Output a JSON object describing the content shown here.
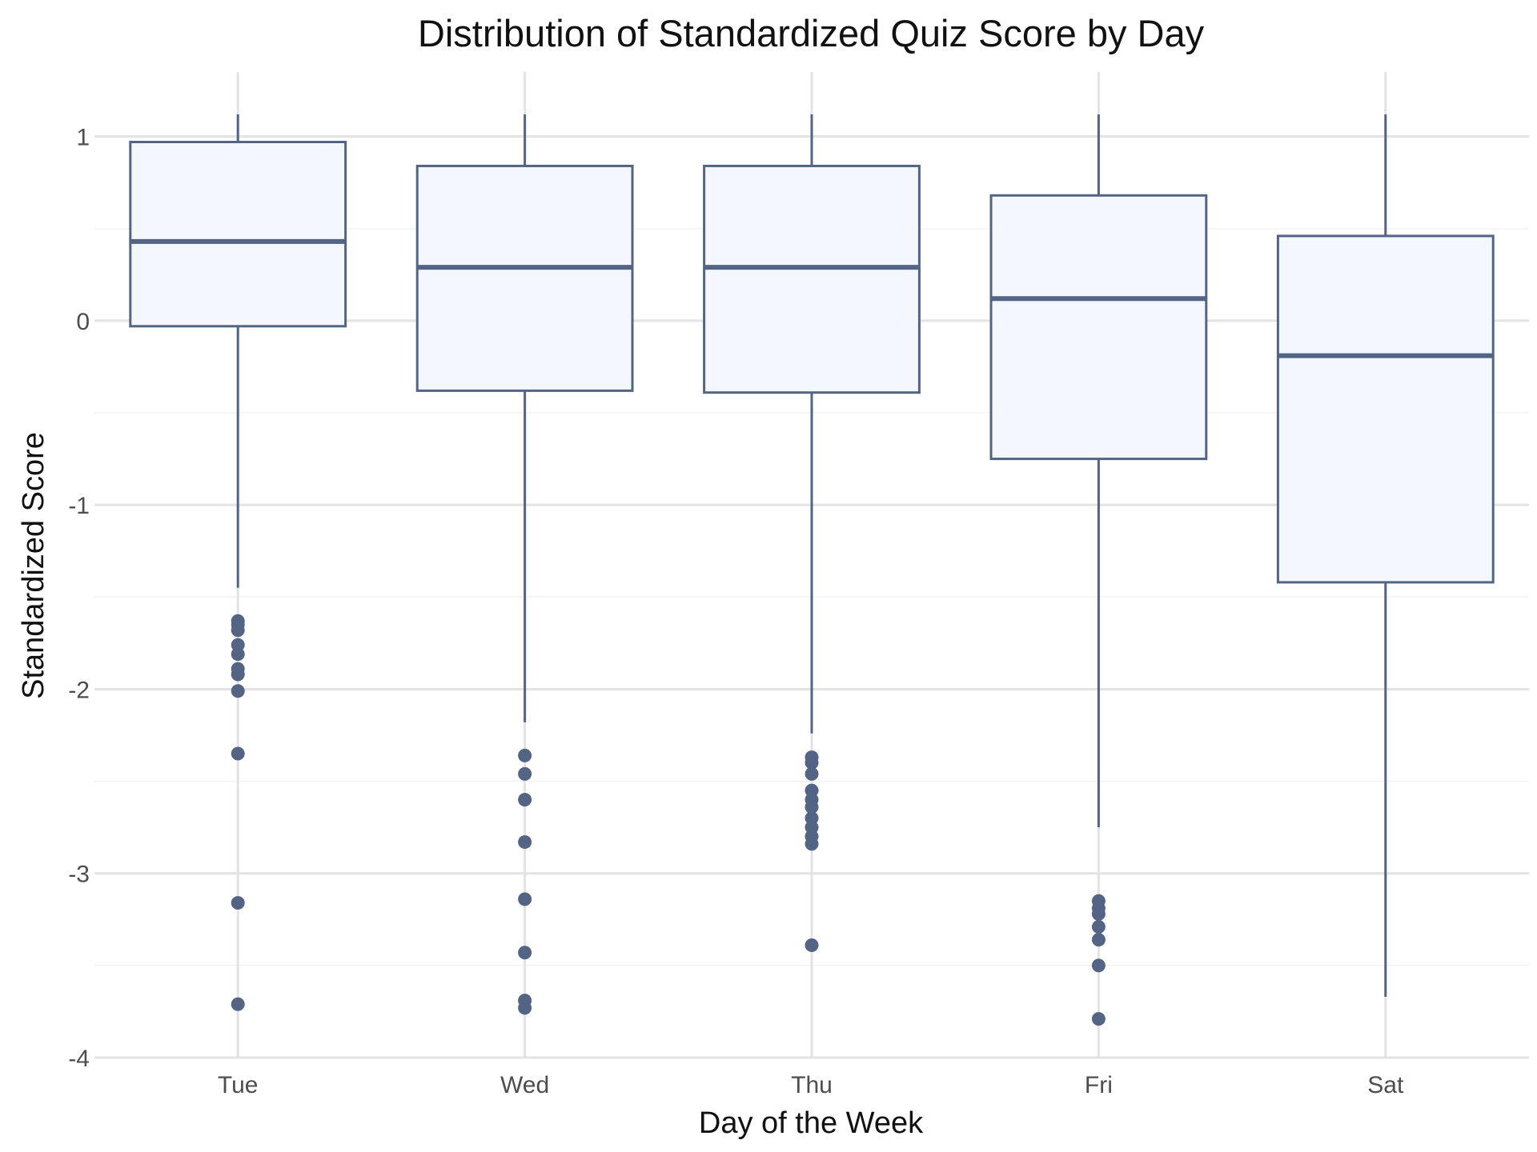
{
  "chart_data": {
    "type": "box",
    "title": "Distribution of Standardized Quiz Score by Day",
    "xlabel": "Day of the Week",
    "ylabel": "Standardized Score",
    "ylim": [
      -4.0,
      1.35
    ],
    "yticks": [
      1,
      0,
      -1,
      -2,
      -3,
      -4
    ],
    "ytick_labels": [
      "1",
      "0",
      "-1",
      "-2",
      "-3",
      "-4"
    ],
    "grid": true,
    "colors": {
      "box_fill": "#f4f7fd",
      "box_stroke": "#536485",
      "grid": "#e3e3e3"
    },
    "categories": [
      "Tue",
      "Wed",
      "Thu",
      "Fri",
      "Sat"
    ],
    "boxes": [
      {
        "category": "Tue",
        "whisker_low": -1.45,
        "q1": -0.03,
        "median": 0.43,
        "q3": 0.97,
        "whisker_high": 1.12,
        "outliers": [
          -1.63,
          -1.65,
          -1.68,
          -1.76,
          -1.81,
          -1.89,
          -1.92,
          -2.01,
          -2.35,
          -3.16,
          -3.71
        ]
      },
      {
        "category": "Wed",
        "whisker_low": -2.18,
        "q1": -0.38,
        "median": 0.29,
        "q3": 0.84,
        "whisker_high": 1.12,
        "outliers": [
          -2.36,
          -2.46,
          -2.6,
          -2.83,
          -3.14,
          -3.43,
          -3.69,
          -3.73
        ]
      },
      {
        "category": "Thu",
        "whisker_low": -2.24,
        "q1": -0.39,
        "median": 0.29,
        "q3": 0.84,
        "whisker_high": 1.12,
        "outliers": [
          -2.37,
          -2.4,
          -2.46,
          -2.55,
          -2.6,
          -2.64,
          -2.7,
          -2.75,
          -2.8,
          -2.84,
          -3.39
        ]
      },
      {
        "category": "Fri",
        "whisker_low": -2.75,
        "q1": -0.75,
        "median": 0.12,
        "q3": 0.68,
        "whisker_high": 1.12,
        "outliers": [
          -3.15,
          -3.19,
          -3.22,
          -3.29,
          -3.36,
          -3.5,
          -3.79
        ]
      },
      {
        "category": "Sat",
        "whisker_low": -3.67,
        "q1": -1.42,
        "median": -0.19,
        "q3": 0.46,
        "whisker_high": 1.12,
        "outliers": []
      }
    ]
  }
}
